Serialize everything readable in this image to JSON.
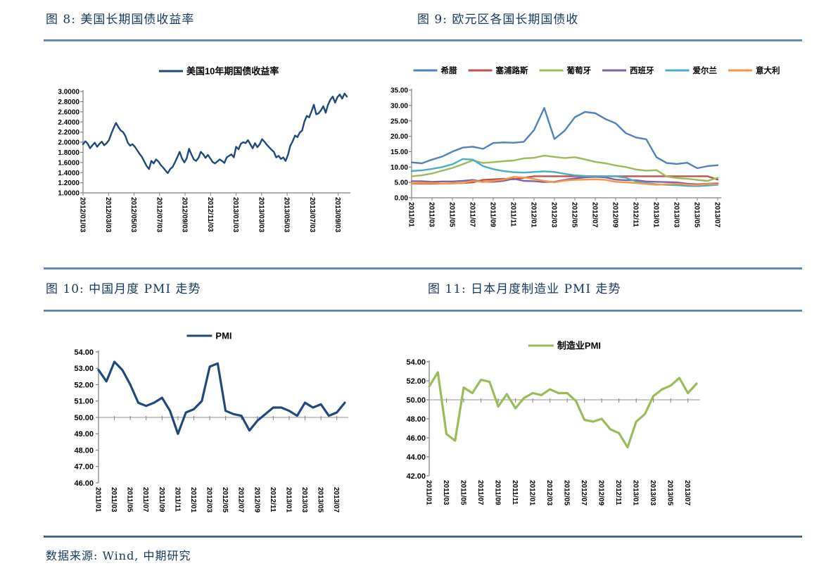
{
  "figures": [
    {
      "title": "图 8: 美国长期国债收益率"
    },
    {
      "title": "图 9: 欧元区各国长期国债收"
    },
    {
      "title": "图 10: 中国月度 PMI 走势"
    },
    {
      "title": "图 11: 日本月度制造业 PMI 走势"
    }
  ],
  "footer": {
    "source_label": "数据来源: Wind, 中期研究"
  },
  "colors": {
    "title_navy": "#17375E",
    "separator_blue": "#4A7CB5",
    "footer_rule": "#24466E",
    "axis_gray": "#808080",
    "gridline_gray": "#A6A6A6",
    "us10y_line": "#1F497D",
    "greece": "#4F81BD",
    "cyprus": "#C0504D",
    "portugal": "#9BBB59",
    "spain": "#8064A2",
    "ireland": "#4BACC6",
    "italy": "#F79646",
    "china_pmi": "#1F497D",
    "japan_pmi": "#9BBB59"
  },
  "chart_data": [
    {
      "id": "fig8",
      "type": "line",
      "title": "美国10年期国债收益率",
      "ylim": [
        1.0,
        3.0
      ],
      "x_axis_at": 1.0,
      "grid": false,
      "legend_position": "top",
      "y_tick_labels": [
        "3.0000",
        "2.8000",
        "2.6000",
        "2.4000",
        "2.2000",
        "2.0000",
        "1.8000",
        "1.6000",
        "1.4000",
        "1.2000",
        "1.0000"
      ],
      "x_tick_labels": [
        "2012/01/03",
        "2012/03/03",
        "2012/05/03",
        "2012/07/03",
        "2012/09/03",
        "2012/11/03",
        "2013/01/03",
        "2013/03/03",
        "2013/05/03",
        "2013/07/03",
        "2013/09/03"
      ],
      "series": [
        {
          "name": "美国10年期国债收益率",
          "key": "us10y",
          "color": "#1F497D",
          "values": [
            1.96,
            2.02,
            1.97,
            1.88,
            1.94,
            1.99,
            1.91,
            1.97,
            2.01,
            1.94,
            1.98,
            2.04,
            2.17,
            2.28,
            2.38,
            2.3,
            2.23,
            2.2,
            2.12,
            1.99,
            1.93,
            1.96,
            1.91,
            1.84,
            1.77,
            1.71,
            1.62,
            1.53,
            1.47,
            1.63,
            1.58,
            1.66,
            1.62,
            1.55,
            1.5,
            1.44,
            1.39,
            1.47,
            1.51,
            1.6,
            1.7,
            1.81,
            1.68,
            1.6,
            1.68,
            1.87,
            1.76,
            1.66,
            1.63,
            1.69,
            1.81,
            1.76,
            1.69,
            1.75,
            1.68,
            1.61,
            1.58,
            1.62,
            1.66,
            1.63,
            1.59,
            1.7,
            1.73,
            1.76,
            1.7,
            1.91,
            1.86,
            1.97,
            2.0,
            1.98,
            2.04,
            1.96,
            1.88,
            1.98,
            1.9,
            1.96,
            2.06,
            2.01,
            1.95,
            1.9,
            1.85,
            1.81,
            1.7,
            1.73,
            1.67,
            1.7,
            1.63,
            1.75,
            1.93,
            2.02,
            2.13,
            2.1,
            2.19,
            2.23,
            2.41,
            2.52,
            2.49,
            2.61,
            2.74,
            2.55,
            2.57,
            2.63,
            2.71,
            2.58,
            2.74,
            2.84,
            2.9,
            2.78,
            2.89,
            2.94,
            2.86,
            2.96,
            2.9
          ]
        }
      ]
    },
    {
      "id": "fig9",
      "type": "line",
      "title": "欧元区各国长期国债收益率",
      "ylim": [
        0,
        35
      ],
      "x_axis_at": 0,
      "grid": false,
      "legend_position": "top",
      "y_tick_labels": [
        "35.00",
        "30.00",
        "25.00",
        "20.00",
        "15.00",
        "10.00",
        "5.00",
        "0.00"
      ],
      "x_tick_labels": [
        "2011/01",
        "2011/03",
        "2011/05",
        "2011/07",
        "2011/09",
        "2011/11",
        "2012/01",
        "2012/03",
        "2012/05",
        "2012/07",
        "2012/09",
        "2012/11",
        "2013/01",
        "2013/03",
        "2013/05",
        "2013/07"
      ],
      "series": [
        {
          "name": "希腊",
          "key": "greece",
          "color": "#4F81BD",
          "values": [
            11.5,
            11.2,
            12.4,
            13.4,
            15.0,
            16.3,
            16.6,
            15.9,
            17.8,
            18.0,
            17.9,
            18.2,
            22.0,
            29.2,
            19.1,
            21.8,
            26.2,
            27.9,
            27.5,
            25.6,
            24.2,
            21.0,
            19.6,
            19.0,
            13.2,
            11.3,
            11.0,
            11.4,
            9.6,
            10.3,
            10.6
          ]
        },
        {
          "name": "塞浦路斯",
          "key": "cyprus",
          "color": "#C0504D",
          "values": [
            4.6,
            4.6,
            4.6,
            4.6,
            4.7,
            4.8,
            5.0,
            5.8,
            6.0,
            6.2,
            6.0,
            6.5,
            7.0,
            7.0,
            7.0,
            7.0,
            7.0,
            7.0,
            7.0,
            7.0,
            7.0,
            7.0,
            7.0,
            7.0,
            7.0,
            7.0,
            7.0,
            7.0,
            7.0,
            7.0,
            5.9
          ]
        },
        {
          "name": "葡萄牙",
          "key": "portugal",
          "color": "#9BBB59",
          "values": [
            7.0,
            7.3,
            7.9,
            8.8,
            9.7,
            10.9,
            12.2,
            11.3,
            11.6,
            11.9,
            12.1,
            12.8,
            13.0,
            13.7,
            13.3,
            12.9,
            13.2,
            12.5,
            11.7,
            11.2,
            10.5,
            10.0,
            9.2,
            8.8,
            9.0,
            6.9,
            6.4,
            6.2,
            5.8,
            5.5,
            6.5
          ]
        },
        {
          "name": "西班牙",
          "key": "spain",
          "color": "#8064A2",
          "values": [
            5.4,
            5.4,
            5.2,
            5.3,
            5.3,
            5.5,
            5.8,
            5.2,
            5.2,
            5.5,
            6.2,
            5.5,
            5.4,
            5.1,
            5.2,
            5.8,
            6.3,
            6.6,
            6.8,
            6.6,
            5.9,
            5.7,
            5.7,
            5.3,
            5.2,
            5.1,
            5.0,
            4.6,
            4.4,
            4.6,
            4.7
          ]
        },
        {
          "name": "爱尔兰",
          "key": "ireland",
          "color": "#4BACC6",
          "values": [
            8.7,
            8.9,
            9.4,
            10.0,
            10.9,
            12.6,
            12.4,
            10.3,
            9.3,
            8.7,
            8.3,
            8.2,
            8.4,
            8.6,
            8.4,
            7.8,
            7.3,
            7.1,
            7.0,
            7.0,
            7.0,
            6.5,
            5.3,
            4.8,
            4.4,
            4.2,
            4.1,
            3.9,
            3.8,
            4.0,
            4.2
          ]
        },
        {
          "name": "意大利",
          "key": "italy",
          "color": "#F79646",
          "values": [
            4.7,
            4.8,
            4.8,
            4.6,
            4.7,
            4.8,
            5.5,
            5.1,
            5.5,
            5.9,
            6.8,
            6.6,
            6.1,
            5.5,
            5.0,
            5.6,
            5.8,
            5.9,
            6.0,
            5.8,
            5.2,
            5.0,
            4.8,
            4.5,
            4.2,
            4.4,
            4.6,
            4.3,
            4.1,
            4.5,
            4.4
          ]
        }
      ]
    },
    {
      "id": "fig10",
      "type": "line",
      "title": "PMI",
      "ylim": [
        46,
        54
      ],
      "x_axis_at": 50,
      "grid": true,
      "legend_position": "top",
      "y_tick_labels": [
        "54.00",
        "53.00",
        "52.00",
        "51.00",
        "50.00",
        "49.00",
        "48.00",
        "47.00",
        "46.00"
      ],
      "x_tick_labels": [
        "2011/01",
        "2011/03",
        "2011/05",
        "2011/07",
        "2011/09",
        "2011/11",
        "2012/01",
        "2012/03",
        "2012/05",
        "2012/07",
        "2012/09",
        "2012/11",
        "2013/01",
        "2013/03",
        "2013/05",
        "2013/07"
      ],
      "series": [
        {
          "name": "PMI",
          "key": "china_pmi",
          "color": "#1F497D",
          "values": [
            52.9,
            52.2,
            53.4,
            52.9,
            52.0,
            50.9,
            50.7,
            50.9,
            51.2,
            50.4,
            49.0,
            50.3,
            50.5,
            51.0,
            53.1,
            53.3,
            50.4,
            50.2,
            50.1,
            49.2,
            49.8,
            50.2,
            50.6,
            50.6,
            50.4,
            50.1,
            50.9,
            50.6,
            50.8,
            50.1,
            50.3,
            50.9
          ]
        }
      ]
    },
    {
      "id": "fig11",
      "type": "line",
      "title": "制造业PMI",
      "ylim": [
        42,
        54
      ],
      "x_axis_at": 50,
      "grid": true,
      "legend_position": "top",
      "y_tick_labels": [
        "54.00",
        "52.00",
        "50.00",
        "48.00",
        "46.00",
        "44.00",
        "42.00"
      ],
      "x_tick_labels": [
        "2011/01",
        "2011/03",
        "2011/05",
        "2011/07",
        "2011/09",
        "2011/11",
        "2012/01",
        "2012/03",
        "2012/05",
        "2012/07",
        "2012/09",
        "2012/11",
        "2013/01",
        "2013/03",
        "2013/05",
        "2013/07"
      ],
      "series": [
        {
          "name": "制造业PMI",
          "key": "japan_pmi",
          "color": "#9BBB59",
          "values": [
            51.4,
            52.9,
            46.4,
            45.7,
            51.3,
            50.7,
            52.1,
            51.9,
            49.3,
            50.6,
            49.1,
            50.2,
            50.7,
            50.5,
            51.1,
            50.7,
            50.7,
            49.9,
            47.9,
            47.7,
            48.0,
            46.9,
            46.5,
            45.0,
            47.7,
            48.5,
            50.4,
            51.1,
            51.5,
            52.3,
            50.7,
            51.7
          ]
        }
      ]
    }
  ]
}
